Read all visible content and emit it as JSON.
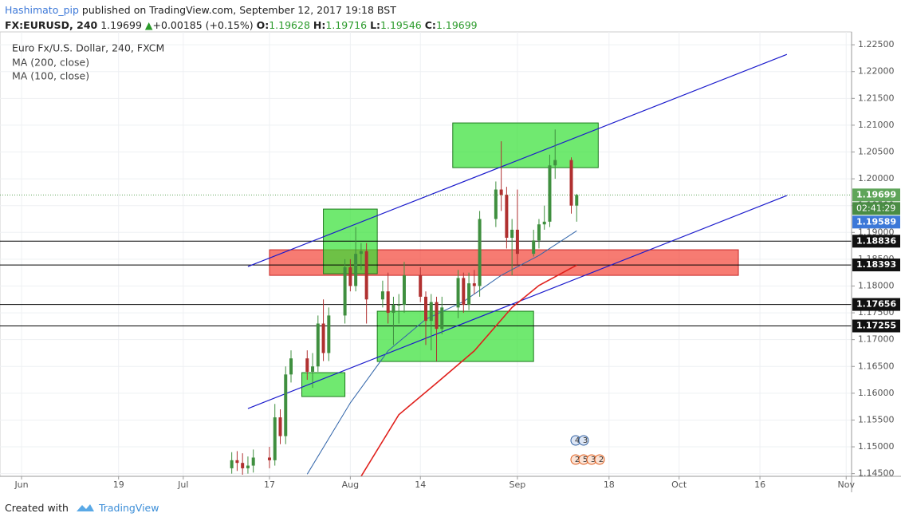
{
  "header": {
    "author": "Hashimato_pip",
    "published": " published on TradingView.com, September 12, 2017 19:18 BST",
    "symbol": "FX:EURUSD, 240",
    "last": "1.19699",
    "arrow": "▲",
    "change": "+0.00185 (+0.15%)",
    "ohlc": [
      {
        "label": "O:",
        "value": "1.19628"
      },
      {
        "label": "H:",
        "value": "1.19716"
      },
      {
        "label": "L:",
        "value": "1.19546"
      },
      {
        "label": "C:",
        "value": "1.19699"
      }
    ]
  },
  "chart_data": {
    "type": "candlestick",
    "title": "Euro Fx/U.S. Dollar, 240, FXCM",
    "x": [
      "2017-07-10",
      "2017-07-11",
      "2017-07-12",
      "2017-07-13",
      "2017-07-14",
      "2017-07-17",
      "2017-07-18",
      "2017-07-19",
      "2017-07-20",
      "2017-07-21",
      "2017-07-24",
      "2017-07-25",
      "2017-07-26",
      "2017-07-27",
      "2017-07-28",
      "2017-07-31",
      "2017-08-01",
      "2017-08-02",
      "2017-08-03",
      "2017-08-04",
      "2017-08-07",
      "2017-08-08",
      "2017-08-09",
      "2017-08-10",
      "2017-08-11",
      "2017-08-14",
      "2017-08-15",
      "2017-08-16",
      "2017-08-17",
      "2017-08-18",
      "2017-08-21",
      "2017-08-22",
      "2017-08-23",
      "2017-08-24",
      "2017-08-25",
      "2017-08-28",
      "2017-08-29",
      "2017-08-30",
      "2017-08-31",
      "2017-09-01",
      "2017-09-04",
      "2017-09-05",
      "2017-09-06",
      "2017-09-07",
      "2017-09-08",
      "2017-09-11",
      "2017-09-12"
    ],
    "open": [
      1.146,
      1.1475,
      1.147,
      1.146,
      1.1465,
      1.148,
      1.1475,
      1.1555,
      1.152,
      1.1635,
      1.1665,
      1.164,
      1.165,
      1.173,
      1.1675,
      1.1745,
      1.1835,
      1.18,
      1.186,
      1.1865,
      1.1775,
      1.179,
      1.175,
      1.1765,
      1.1765,
      1.182,
      1.178,
      1.1735,
      1.177,
      1.172,
      1.176,
      1.1815,
      1.1765,
      1.1805,
      1.18,
      1.1925,
      1.198,
      1.197,
      1.189,
      1.1905,
      1.186,
      1.1885,
      1.1915,
      1.192,
      1.2025,
      1.2035,
      1.195
    ],
    "high": [
      1.149,
      1.1492,
      1.1488,
      1.1482,
      1.1495,
      1.15,
      1.158,
      1.157,
      1.165,
      1.168,
      1.168,
      1.1675,
      1.1745,
      1.1775,
      1.176,
      1.185,
      1.185,
      1.191,
      1.188,
      1.188,
      1.181,
      1.1825,
      1.178,
      1.1785,
      1.1845,
      1.1835,
      1.179,
      1.1785,
      1.178,
      1.178,
      1.183,
      1.1825,
      1.1825,
      1.183,
      1.194,
      1.1995,
      1.207,
      1.1985,
      1.1925,
      1.198,
      1.1905,
      1.1925,
      1.195,
      1.2045,
      1.2092,
      1.204,
      1.1972
    ],
    "low": [
      1.145,
      1.1455,
      1.1448,
      1.145,
      1.1452,
      1.146,
      1.1465,
      1.1505,
      1.1505,
      1.162,
      1.1625,
      1.161,
      1.164,
      1.166,
      1.166,
      1.173,
      1.179,
      1.179,
      1.183,
      1.173,
      1.176,
      1.173,
      1.169,
      1.173,
      1.175,
      1.177,
      1.169,
      1.168,
      1.166,
      1.171,
      1.174,
      1.175,
      1.1755,
      1.1785,
      1.178,
      1.191,
      1.194,
      1.187,
      1.182,
      1.184,
      1.1855,
      1.187,
      1.1905,
      1.191,
      1.2,
      1.1935,
      1.192
    ],
    "close": [
      1.1475,
      1.147,
      1.146,
      1.1465,
      1.148,
      1.1475,
      1.1555,
      1.152,
      1.1635,
      1.1665,
      1.164,
      1.165,
      1.173,
      1.1675,
      1.1745,
      1.1835,
      1.18,
      1.186,
      1.1865,
      1.1775,
      1.179,
      1.175,
      1.1765,
      1.1765,
      1.182,
      1.178,
      1.1735,
      1.177,
      1.172,
      1.176,
      1.1815,
      1.1765,
      1.1805,
      1.18,
      1.1925,
      1.198,
      1.197,
      1.189,
      1.1905,
      1.186,
      1.1885,
      1.1915,
      1.192,
      1.2025,
      1.2035,
      1.195,
      1.197
    ],
    "up_color": "#3f8f3f",
    "down_color": "#b03030",
    "series": [
      {
        "name": "MA (200, close)",
        "color": "#e0201c",
        "x": [
          "2017-08-03",
          "2017-08-10",
          "2017-08-17",
          "2017-08-24",
          "2017-08-31",
          "2017-09-05",
          "2017-09-12"
        ],
        "values": [
          1.1445,
          1.156,
          1.1619,
          1.1679,
          1.176,
          1.1801,
          1.1839
        ]
      },
      {
        "name": "MA (100, close)",
        "color": "#3366aa",
        "x": [
          "2017-07-24",
          "2017-08-01",
          "2017-08-08",
          "2017-08-15",
          "2017-08-22",
          "2017-08-29",
          "2017-09-05",
          "2017-09-12"
        ],
        "values": [
          1.1449,
          1.1582,
          1.1679,
          1.1738,
          1.1771,
          1.182,
          1.1857,
          1.1903
        ]
      }
    ],
    "trend_lines": [
      {
        "color": "#1a1acc",
        "x": [
          "2017-07-13",
          "2017-10-21"
        ],
        "values": [
          1.18363,
          1.22321
        ]
      },
      {
        "color": "#1a1acc",
        "x": [
          "2017-07-13",
          "2017-10-21"
        ],
        "values": [
          1.15714,
          1.19688
        ]
      }
    ],
    "zones": [
      {
        "color": "#f44336",
        "x": [
          "2017-07-17",
          "2017-10-12"
        ],
        "values": [
          1.18676,
          1.18199
        ]
      },
      {
        "color": "#33e033",
        "x": [
          "2017-07-27",
          "2017-08-06"
        ],
        "values": [
          1.19435,
          1.18229
        ]
      },
      {
        "color": "#33e033",
        "x": [
          "2017-08-06",
          "2017-09-04"
        ],
        "values": [
          1.1753,
          1.16592
        ]
      },
      {
        "color": "#33e033",
        "x": [
          "2017-08-20",
          "2017-09-16"
        ],
        "values": [
          1.21042,
          1.20208
        ]
      },
      {
        "color": "#33e033",
        "x": [
          "2017-07-23",
          "2017-07-31"
        ],
        "values": [
          1.16384,
          1.15938
        ]
      }
    ],
    "levels": [
      1.18836,
      1.18393,
      1.17656,
      1.17255
    ],
    "last_price": {
      "value": 1.19699,
      "color": "#5fa55a",
      "countdown": "02:41:29"
    },
    "bid_price": {
      "value": 1.19589,
      "color": "#3c78d8"
    },
    "events": {
      "top": [
        "4",
        "3"
      ],
      "bottom": [
        "2",
        "5",
        "3",
        "2"
      ]
    },
    "ylim": [
      1.1445,
      1.2274
    ],
    "yticks": [
      {
        "value": 1.145,
        "label": "1.14500"
      },
      {
        "value": 1.15,
        "label": "1.15000"
      },
      {
        "value": 1.155,
        "label": "1.15500"
      },
      {
        "value": 1.16,
        "label": "1.16000"
      },
      {
        "value": 1.165,
        "label": "1.16500"
      },
      {
        "value": 1.17,
        "label": "1.17000"
      },
      {
        "value": 1.175,
        "label": "1.17500"
      },
      {
        "value": 1.18,
        "label": "1.18000"
      },
      {
        "value": 1.185,
        "label": "1.18500"
      },
      {
        "value": 1.19,
        "label": "1.19000"
      },
      {
        "value": 1.195,
        "label": "1.19500"
      },
      {
        "value": 1.2,
        "label": "1.20000"
      },
      {
        "value": 1.205,
        "label": "1.20500"
      },
      {
        "value": 1.21,
        "label": "1.21000"
      },
      {
        "value": 1.215,
        "label": "1.21500"
      },
      {
        "value": 1.22,
        "label": "1.22000"
      },
      {
        "value": 1.225,
        "label": "1.22500"
      }
    ],
    "xlim": [
      "2017-05-28",
      "2017-11-02"
    ],
    "xticks": [
      {
        "value": "2017-06-01",
        "label": "Jun"
      },
      {
        "value": "2017-06-19",
        "label": "19"
      },
      {
        "value": "2017-07-01",
        "label": "Jul"
      },
      {
        "value": "2017-07-17",
        "label": "17"
      },
      {
        "value": "2017-08-01",
        "label": "Aug"
      },
      {
        "value": "2017-08-14",
        "label": "14"
      },
      {
        "value": "2017-09-01",
        "label": "Sep"
      },
      {
        "value": "2017-09-18",
        "label": "18"
      },
      {
        "value": "2017-10-01",
        "label": "Oct"
      },
      {
        "value": "2017-10-16",
        "label": "16"
      },
      {
        "value": "2017-11-01",
        "label": "Nov"
      }
    ],
    "grid": true
  },
  "footer": {
    "created": "Created with",
    "brand": "TradingView"
  }
}
